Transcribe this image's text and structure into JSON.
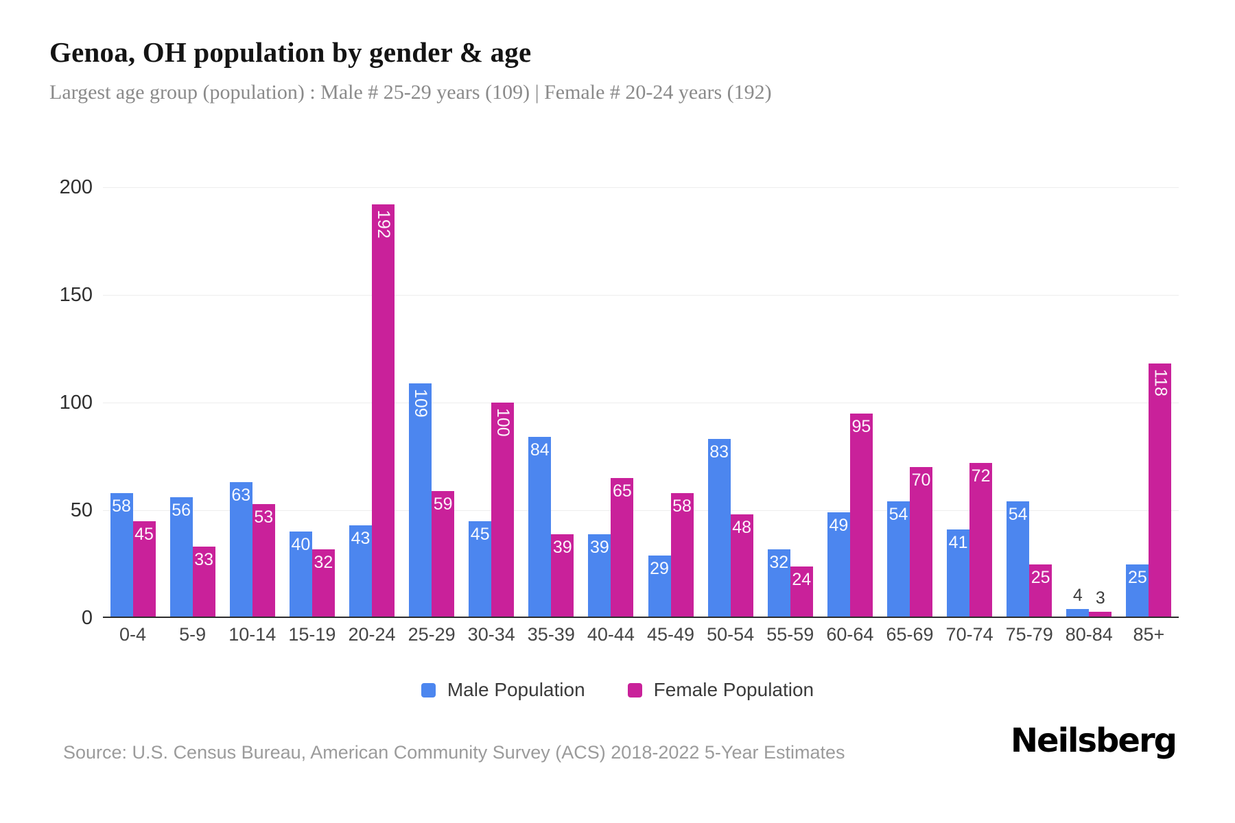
{
  "header": {
    "title": "Genoa, OH population by gender & age",
    "subtitle": "Largest age group (population) : Male # 25-29 years (109) | Female # 20-24 years (192)"
  },
  "chart_data": {
    "type": "bar",
    "title": "Genoa, OH population by gender & age",
    "categories": [
      "0-4",
      "5-9",
      "10-14",
      "15-19",
      "20-24",
      "25-29",
      "30-34",
      "35-39",
      "40-44",
      "45-49",
      "50-54",
      "55-59",
      "60-64",
      "65-69",
      "70-74",
      "75-79",
      "80-84",
      "85+"
    ],
    "series": [
      {
        "name": "Male Population",
        "color": "#4c86ef",
        "values": [
          58,
          56,
          63,
          40,
          43,
          109,
          45,
          84,
          39,
          29,
          83,
          32,
          49,
          54,
          41,
          54,
          4,
          25
        ]
      },
      {
        "name": "Female Population",
        "color": "#c9219a",
        "values": [
          45,
          33,
          53,
          32,
          192,
          59,
          100,
          39,
          65,
          58,
          48,
          24,
          95,
          70,
          72,
          25,
          3,
          118
        ]
      }
    ],
    "xlabel": "",
    "ylabel": "",
    "ylim": [
      0,
      200
    ],
    "yticks": [
      0,
      50,
      100,
      150,
      200
    ],
    "grid": true,
    "legend_position": "bottom",
    "bar_label_inside_color": "#ffffff",
    "bar_label_outside_color": "#3d3d3d",
    "outside_label_threshold": 10,
    "vertical_label_threshold": 100
  },
  "footer": {
    "source": "Source: U.S. Census Bureau, American Community Survey (ACS) 2018-2022 5-Year Estimates",
    "brand": "Neilsberg"
  }
}
